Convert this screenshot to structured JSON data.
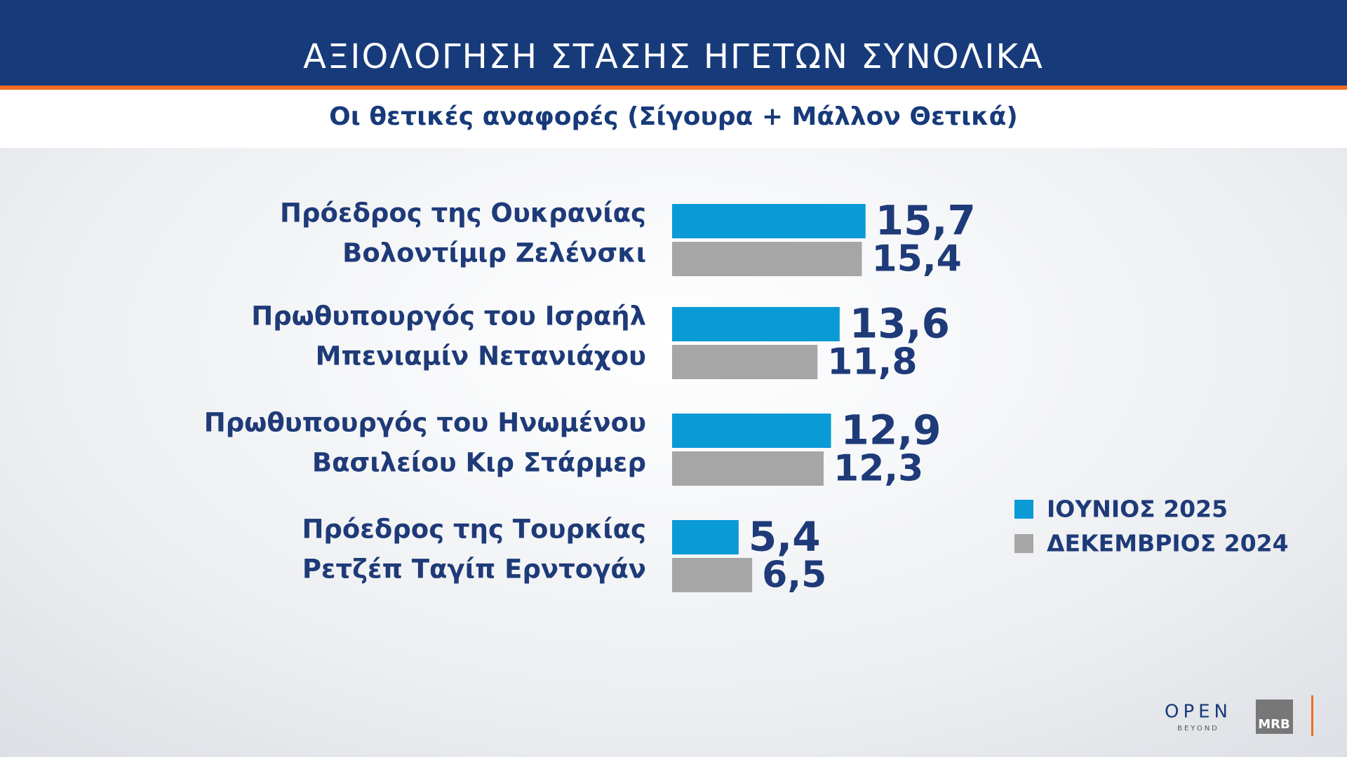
{
  "chart_data": {
    "type": "bar",
    "title": "ΑΞΙΟΛΟΓΗΣΗ ΣΤΑΣΗΣ ΗΓΕΤΩΝ ΣΥΝΟΛΙΚΑ",
    "subtitle": "Οι θετικές αναφορές (Σίγουρα + Μάλλον Θετικά)",
    "orientation": "horizontal",
    "categories": [
      [
        "Πρόεδρος της Ουκρανίας",
        "Βολοντίμιρ Ζελένσκι"
      ],
      [
        "Πρωθυπουργός του Ισραήλ",
        "Μπενιαμίν Νετανιάχου"
      ],
      [
        "Πρωθυπουργός του Ηνωμένου",
        "Βασιλείου Κιρ Στάρμερ"
      ],
      [
        "Πρόεδρος της Τουρκίας",
        "Ρετζέπ Ταγίπ Ερντογάν"
      ]
    ],
    "series": [
      {
        "name": "ΙΟΥΝΙΟΣ 2025",
        "color": "#0a9ad6",
        "values": [
          15.7,
          13.6,
          12.9,
          5.4
        ],
        "value_labels": [
          "15,7",
          "13,6",
          "12,9",
          "5,4"
        ]
      },
      {
        "name": "ΔΕΚΕΜΒΡΙΟΣ 2024",
        "color": "#a6a6a6",
        "values": [
          15.4,
          11.8,
          12.3,
          6.5
        ],
        "value_labels": [
          "15,4",
          "11,8",
          "12,3",
          "6,5"
        ]
      }
    ],
    "xlim": [
      0,
      16
    ],
    "legend": "right"
  },
  "logos": {
    "brand": "OPEN",
    "tagline": "BEYOND",
    "pollster": "MRB"
  }
}
